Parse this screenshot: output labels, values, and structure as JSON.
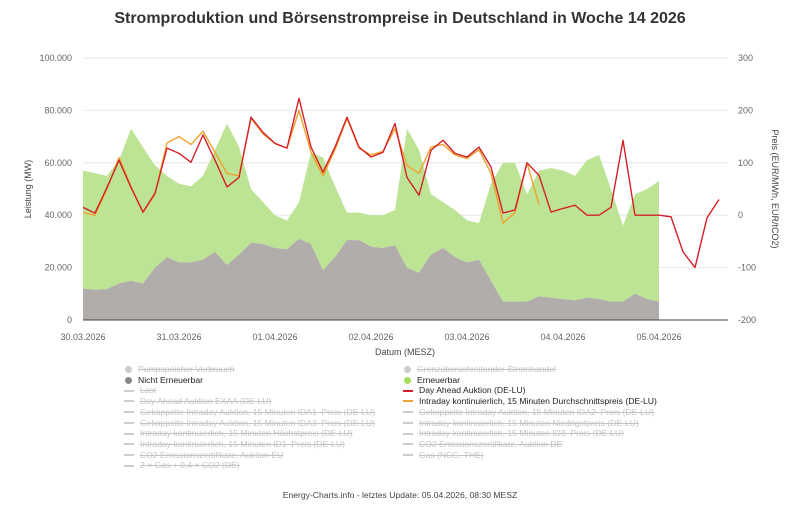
{
  "title": "Stromproduktion und Börsenstrompreise in Deutschland in Woche 14 2026",
  "footer": "Energy-Charts.info - letztes Update: 05.04.2026, 08:30 MESZ",
  "colors": {
    "renewable": "#bde395",
    "nonrenewable": "#b1adab",
    "day_ahead": "#d42027",
    "intraday": "#f0a22e",
    "hidden": "#cccccc",
    "grid": "#e6e6e6"
  },
  "chart_data": {
    "type": "area+line",
    "title": "Stromproduktion und Börsenstrompreise in Deutschland in Woche 14 2026",
    "xlabel": "Datum (MESZ)",
    "ylabel": "Leistung (MW)",
    "y2label": "Preis (EUR/MWh, EUR/tCO2)",
    "ylim": [
      0,
      100000
    ],
    "y2lim": [
      -200,
      300
    ],
    "yticks": [
      "0",
      "20.000",
      "40.000",
      "60.000",
      "80.000",
      "100.000"
    ],
    "y2ticks": [
      "-200",
      "-100",
      "0",
      "100",
      "200",
      "300"
    ],
    "xticks": [
      "30.03.2026",
      "31.03.2026",
      "01.04.2026",
      "02.04.2026",
      "03.04.2026",
      "04.04.2026",
      "05.04.2026"
    ],
    "grid": true,
    "legend": "bottom",
    "x": [
      "30.03.2026 00:00",
      "30.03.2026 03:00",
      "30.03.2026 06:00",
      "30.03.2026 09:00",
      "30.03.2026 12:00",
      "30.03.2026 15:00",
      "30.03.2026 18:00",
      "30.03.2026 21:00",
      "31.03.2026 00:00",
      "31.03.2026 03:00",
      "31.03.2026 06:00",
      "31.03.2026 09:00",
      "31.03.2026 12:00",
      "31.03.2026 15:00",
      "31.03.2026 18:00",
      "31.03.2026 21:00",
      "01.04.2026 00:00",
      "01.04.2026 03:00",
      "01.04.2026 06:00",
      "01.04.2026 09:00",
      "01.04.2026 12:00",
      "01.04.2026 15:00",
      "01.04.2026 18:00",
      "01.04.2026 21:00",
      "02.04.2026 00:00",
      "02.04.2026 03:00",
      "02.04.2026 06:00",
      "02.04.2026 09:00",
      "02.04.2026 12:00",
      "02.04.2026 15:00",
      "02.04.2026 18:00",
      "02.04.2026 21:00",
      "03.04.2026 00:00",
      "03.04.2026 03:00",
      "03.04.2026 06:00",
      "03.04.2026 09:00",
      "03.04.2026 12:00",
      "03.04.2026 15:00",
      "03.04.2026 18:00",
      "03.04.2026 21:00",
      "04.04.2026 00:00",
      "04.04.2026 03:00",
      "04.04.2026 06:00",
      "04.04.2026 09:00",
      "04.04.2026 12:00",
      "04.04.2026 15:00",
      "04.04.2026 18:00",
      "04.04.2026 21:00",
      "05.04.2026 00:00",
      "05.04.2026 03:00",
      "05.04.2026 06:00",
      "05.04.2026 09:00",
      "05.04.2026 12:00",
      "05.04.2026 15:00"
    ],
    "series": [
      {
        "name": "Nicht Erneuerbar",
        "type": "area",
        "axis": "left",
        "values": [
          12000,
          11500,
          11800,
          14000,
          15000,
          14000,
          20000,
          24000,
          22000,
          22000,
          23000,
          26000,
          21000,
          25000,
          29500,
          29000,
          27500,
          27000,
          31000,
          29000,
          19000,
          24000,
          30500,
          30500,
          28000,
          27500,
          28500,
          20000,
          18000,
          25000,
          27500,
          24000,
          22000,
          23000,
          15000,
          7000,
          7000,
          7000,
          9000,
          8500,
          8000,
          7500,
          8500,
          8000,
          7000,
          7000,
          10000,
          8000,
          7000,
          null,
          null,
          null,
          null,
          null
        ]
      },
      {
        "name": "Erneuerbar",
        "type": "area",
        "axis": "left",
        "stacked_total": [
          57000,
          56000,
          55000,
          61000,
          73000,
          66000,
          59000,
          55000,
          52000,
          51000,
          55000,
          65000,
          75000,
          66000,
          50000,
          45000,
          40000,
          38000,
          45000,
          64000,
          62000,
          51000,
          41000,
          41000,
          40000,
          40000,
          42000,
          73000,
          65000,
          48000,
          45000,
          42000,
          38000,
          37000,
          52000,
          60000,
          60000,
          48000,
          57000,
          58000,
          57000,
          55000,
          61000,
          63000,
          50000,
          36000,
          48000,
          50000,
          53000,
          null,
          null,
          null,
          null,
          null
        ]
      },
      {
        "name": "Day Ahead Auktion (DE-LU)",
        "type": "line",
        "axis": "right",
        "values": [
          15,
          4,
          53,
          105,
          53,
          6,
          42,
          128,
          118,
          101,
          153,
          105,
          54,
          72,
          187,
          158,
          137,
          128,
          223,
          130,
          82,
          130,
          187,
          130,
          111,
          120,
          175,
          72,
          38,
          124,
          143,
          118,
          111,
          130,
          92,
          4,
          10,
          100,
          76,
          6,
          13,
          19,
          0,
          0,
          15,
          143,
          0,
          0,
          0,
          -3,
          -70,
          -100,
          -5,
          30
        ]
      },
      {
        "name": "Intraday kontinuierlich, 15 Minuten Durchschnittspreis (DE-LU)",
        "type": "line",
        "axis": "right",
        "values": [
          5,
          0,
          50,
          110,
          55,
          5,
          40,
          138,
          150,
          135,
          160,
          120,
          80,
          75,
          185,
          155,
          137,
          128,
          200,
          120,
          75,
          125,
          185,
          128,
          115,
          122,
          165,
          95,
          80,
          130,
          135,
          115,
          108,
          125,
          80,
          -15,
          5,
          100,
          20,
          null,
          null,
          null,
          null,
          null,
          null,
          null,
          null,
          null,
          null,
          null,
          null,
          null,
          null,
          null
        ]
      }
    ]
  },
  "legend": {
    "left": [
      {
        "label": "Pumpspeicher Verbrauch",
        "symbol": "dot",
        "visible": false
      },
      {
        "label": "Nicht Erneuerbar",
        "symbol": "dot",
        "visible": true,
        "color": "#8a8786"
      },
      {
        "label": "Last",
        "symbol": "line",
        "visible": false
      },
      {
        "label": "Day Ahead Auktion EXAA (DE-LU)",
        "symbol": "line",
        "visible": false
      },
      {
        "label": "Gekoppelte Intraday Auktion, 15 Minuten IDA1–Preis (DE-LU)",
        "symbol": "line",
        "visible": false
      },
      {
        "label": "Gekoppelte Intraday Auktion, 15 Minuten IDA3–Preis (DE-LU)",
        "symbol": "line",
        "visible": false
      },
      {
        "label": "Intraday kontinuierlich, 15 Minuten Höchstpreis (DE-LU)",
        "symbol": "line",
        "visible": false
      },
      {
        "label": "Intraday kontinuierlich, 15 Minuten ID1–Preis (DE-LU)",
        "symbol": "line",
        "visible": false
      },
      {
        "label": "CO2 Emissionszertifikate, Auktion EU",
        "symbol": "line",
        "visible": false
      },
      {
        "label": "2 × Gas + 0,4 × CO2 (DE)",
        "symbol": "line",
        "visible": false
      }
    ],
    "right": [
      {
        "label": "Grenzüberschreitender Stromhandel",
        "symbol": "dot",
        "visible": false
      },
      {
        "label": "Erneuerbar",
        "symbol": "dot",
        "visible": true,
        "color": "#a5dc5e"
      },
      {
        "label": "Day Ahead Auktion (DE-LU)",
        "symbol": "line",
        "visible": true,
        "color": "#d42027"
      },
      {
        "label": "Intraday kontinuierlich, 15 Minuten Durchschnittspreis (DE-LU)",
        "symbol": "line",
        "visible": true,
        "color": "#f0a22e"
      },
      {
        "label": "Gekoppelte Intraday Auktion, 15 Minuten IDA2–Preis (DE-LU)",
        "symbol": "line",
        "visible": false
      },
      {
        "label": "Intraday kontinuierlich, 15 Minuten Niedrigstpreis (DE-LU)",
        "symbol": "line",
        "visible": false
      },
      {
        "label": "Intraday kontinuierlich, 15 Minuten ID3–Preis (DE-LU)",
        "symbol": "line",
        "visible": false
      },
      {
        "label": "CO2 Emissionszertifikate, Auktion DE",
        "symbol": "line",
        "visible": false
      },
      {
        "label": "Gas (NCG, THE)",
        "symbol": "line",
        "visible": false
      }
    ]
  }
}
